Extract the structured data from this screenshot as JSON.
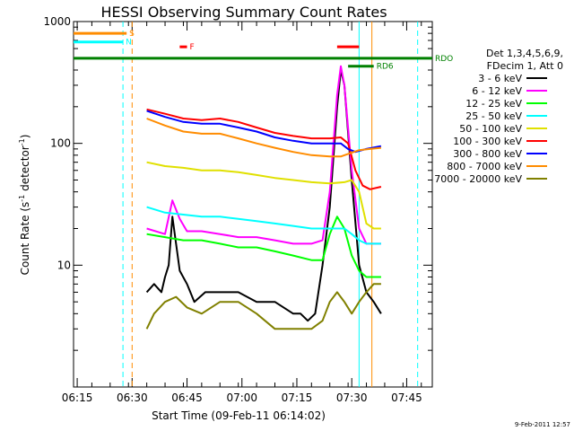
{
  "chart_data": {
    "type": "line",
    "title": "HESSI Observing Summary Count Rates",
    "xlabel": "Start Time (09-Feb-11 06:14:02)",
    "ylabel_parts": {
      "main": "Count Rate (s",
      "sup": "-1",
      "rest": " detector",
      "sup2": "-1",
      "close": ")"
    },
    "x_range_min": [
      0,
      98
    ],
    "y_range": [
      1,
      1000
    ],
    "y_scale": "log",
    "x_ticks": [
      {
        "label": "06:15",
        "min": 1
      },
      {
        "label": "06:30",
        "min": 16
      },
      {
        "label": "06:45",
        "min": 31
      },
      {
        "label": "07:00",
        "min": 46
      },
      {
        "label": "07:15",
        "min": 61
      },
      {
        "label": "07:30",
        "min": 76
      },
      {
        "label": "07:45",
        "min": 91
      }
    ],
    "y_ticks": [
      {
        "label": "10",
        "value": 10
      },
      {
        "label": "100",
        "value": 100
      },
      {
        "label": "1000",
        "value": 1000
      }
    ],
    "legend_header": [
      "Det 1,3,4,5,6,9,",
      "FDecim 1, Att 0"
    ],
    "series": [
      {
        "name": "3 - 6 keV",
        "color": "#000000",
        "points": [
          [
            20,
            6
          ],
          [
            22,
            7
          ],
          [
            24,
            6
          ],
          [
            25,
            8
          ],
          [
            26,
            10
          ],
          [
            27,
            25
          ],
          [
            28,
            15
          ],
          [
            29,
            9
          ],
          [
            31,
            7
          ],
          [
            33,
            5
          ],
          [
            36,
            6
          ],
          [
            40,
            6
          ],
          [
            45,
            6
          ],
          [
            50,
            5
          ],
          [
            55,
            5
          ],
          [
            60,
            4
          ],
          [
            62,
            4
          ],
          [
            64,
            3.5
          ],
          [
            66,
            4
          ],
          [
            68,
            10
          ],
          [
            70,
            30
          ],
          [
            72,
            200
          ],
          [
            73,
            400
          ],
          [
            74,
            300
          ],
          [
            76,
            50
          ],
          [
            78,
            10
          ],
          [
            80,
            6
          ],
          [
            82,
            5
          ],
          [
            84,
            4
          ]
        ]
      },
      {
        "name": "6 - 12 keV",
        "color": "#ff00ff",
        "points": [
          [
            20,
            20
          ],
          [
            25,
            18
          ],
          [
            27,
            34
          ],
          [
            29,
            24
          ],
          [
            31,
            19
          ],
          [
            35,
            19
          ],
          [
            40,
            18
          ],
          [
            45,
            17
          ],
          [
            50,
            17
          ],
          [
            55,
            16
          ],
          [
            60,
            15
          ],
          [
            65,
            15
          ],
          [
            68,
            16
          ],
          [
            70,
            40
          ],
          [
            72,
            250
          ],
          [
            73,
            430
          ],
          [
            74,
            300
          ],
          [
            76,
            60
          ],
          [
            78,
            20
          ],
          [
            80,
            15
          ],
          [
            82,
            15
          ],
          [
            84,
            15
          ]
        ]
      },
      {
        "name": "12 - 25 keV",
        "color": "#00ff00",
        "points": [
          [
            20,
            18
          ],
          [
            25,
            17
          ],
          [
            30,
            16
          ],
          [
            35,
            16
          ],
          [
            40,
            15
          ],
          [
            45,
            14
          ],
          [
            50,
            14
          ],
          [
            55,
            13
          ],
          [
            60,
            12
          ],
          [
            65,
            11
          ],
          [
            68,
            11
          ],
          [
            70,
            18
          ],
          [
            72,
            25
          ],
          [
            74,
            20
          ],
          [
            76,
            12
          ],
          [
            78,
            9
          ],
          [
            80,
            8
          ],
          [
            82,
            8
          ],
          [
            84,
            8
          ]
        ]
      },
      {
        "name": "25 - 50 keV",
        "color": "#00ffff",
        "points": [
          [
            20,
            30
          ],
          [
            25,
            27
          ],
          [
            30,
            26
          ],
          [
            35,
            25
          ],
          [
            40,
            25
          ],
          [
            45,
            24
          ],
          [
            50,
            23
          ],
          [
            55,
            22
          ],
          [
            60,
            21
          ],
          [
            65,
            20
          ],
          [
            68,
            20
          ],
          [
            70,
            20
          ],
          [
            72,
            20
          ],
          [
            74,
            20
          ],
          [
            76,
            18
          ],
          [
            78,
            16
          ],
          [
            80,
            15
          ],
          [
            82,
            15
          ],
          [
            84,
            15
          ]
        ]
      },
      {
        "name": "50 - 100 keV",
        "color": "#e0e000",
        "points": [
          [
            20,
            70
          ],
          [
            25,
            65
          ],
          [
            30,
            63
          ],
          [
            35,
            60
          ],
          [
            40,
            60
          ],
          [
            45,
            58
          ],
          [
            50,
            55
          ],
          [
            55,
            52
          ],
          [
            60,
            50
          ],
          [
            65,
            48
          ],
          [
            70,
            47
          ],
          [
            74,
            48
          ],
          [
            76,
            50
          ],
          [
            78,
            40
          ],
          [
            80,
            22
          ],
          [
            82,
            20
          ],
          [
            84,
            20
          ]
        ]
      },
      {
        "name": "100 - 300 keV",
        "color": "#ff0000",
        "points": [
          [
            20,
            190
          ],
          [
            25,
            175
          ],
          [
            30,
            160
          ],
          [
            35,
            155
          ],
          [
            40,
            160
          ],
          [
            45,
            150
          ],
          [
            50,
            135
          ],
          [
            55,
            122
          ],
          [
            60,
            115
          ],
          [
            65,
            110
          ],
          [
            70,
            110
          ],
          [
            73,
            112
          ],
          [
            75,
            100
          ],
          [
            77,
            60
          ],
          [
            79,
            45
          ],
          [
            81,
            42
          ],
          [
            84,
            44
          ]
        ]
      },
      {
        "name": "300 - 800 keV",
        "color": "#0000ff",
        "points": [
          [
            20,
            185
          ],
          [
            25,
            165
          ],
          [
            30,
            150
          ],
          [
            35,
            145
          ],
          [
            40,
            145
          ],
          [
            45,
            135
          ],
          [
            50,
            125
          ],
          [
            55,
            112
          ],
          [
            60,
            105
          ],
          [
            65,
            100
          ],
          [
            70,
            100
          ],
          [
            73,
            100
          ],
          [
            75,
            90
          ],
          [
            77,
            85
          ],
          [
            80,
            90
          ],
          [
            84,
            95
          ]
        ]
      },
      {
        "name": "800 - 7000 keV",
        "color": "#ff8c00",
        "points": [
          [
            20,
            160
          ],
          [
            25,
            140
          ],
          [
            30,
            125
          ],
          [
            35,
            120
          ],
          [
            40,
            120
          ],
          [
            45,
            110
          ],
          [
            50,
            100
          ],
          [
            55,
            92
          ],
          [
            60,
            85
          ],
          [
            65,
            80
          ],
          [
            70,
            78
          ],
          [
            73,
            78
          ],
          [
            75,
            82
          ],
          [
            78,
            88
          ],
          [
            81,
            90
          ],
          [
            84,
            92
          ]
        ]
      },
      {
        "name": "7000 - 20000 keV",
        "color": "#808000",
        "points": [
          [
            20,
            3
          ],
          [
            22,
            4
          ],
          [
            25,
            5
          ],
          [
            28,
            5.5
          ],
          [
            31,
            4.5
          ],
          [
            35,
            4
          ],
          [
            40,
            5
          ],
          [
            45,
            5
          ],
          [
            50,
            4
          ],
          [
            55,
            3
          ],
          [
            60,
            3
          ],
          [
            65,
            3
          ],
          [
            68,
            3.5
          ],
          [
            70,
            5
          ],
          [
            72,
            6
          ],
          [
            74,
            5
          ],
          [
            76,
            4
          ],
          [
            78,
            5
          ],
          [
            80,
            6
          ],
          [
            82,
            7
          ],
          [
            84,
            7
          ]
        ]
      }
    ],
    "flags": [
      {
        "name": "S",
        "color": "#ff8c00",
        "x0": 0,
        "x1": 14.5,
        "level": 800
      },
      {
        "name": "N",
        "color": "#00ffff",
        "x0": 0,
        "x1": 13.5,
        "level": 680
      },
      {
        "name": "F",
        "color": "#ff0000",
        "x0": 29,
        "x1": 31,
        "level": 620
      },
      {
        "name": "",
        "color": "#ff0000",
        "x0": 72,
        "x1": 78,
        "level": 620
      },
      {
        "name": "RD6",
        "color": "#008000",
        "x0": 75,
        "x1": 82,
        "level": 430
      },
      {
        "name": "RDO",
        "color": "#008000",
        "x0": 0,
        "x1": 98,
        "level": 500
      }
    ],
    "footer": "9-Feb-2011 12:57"
  }
}
